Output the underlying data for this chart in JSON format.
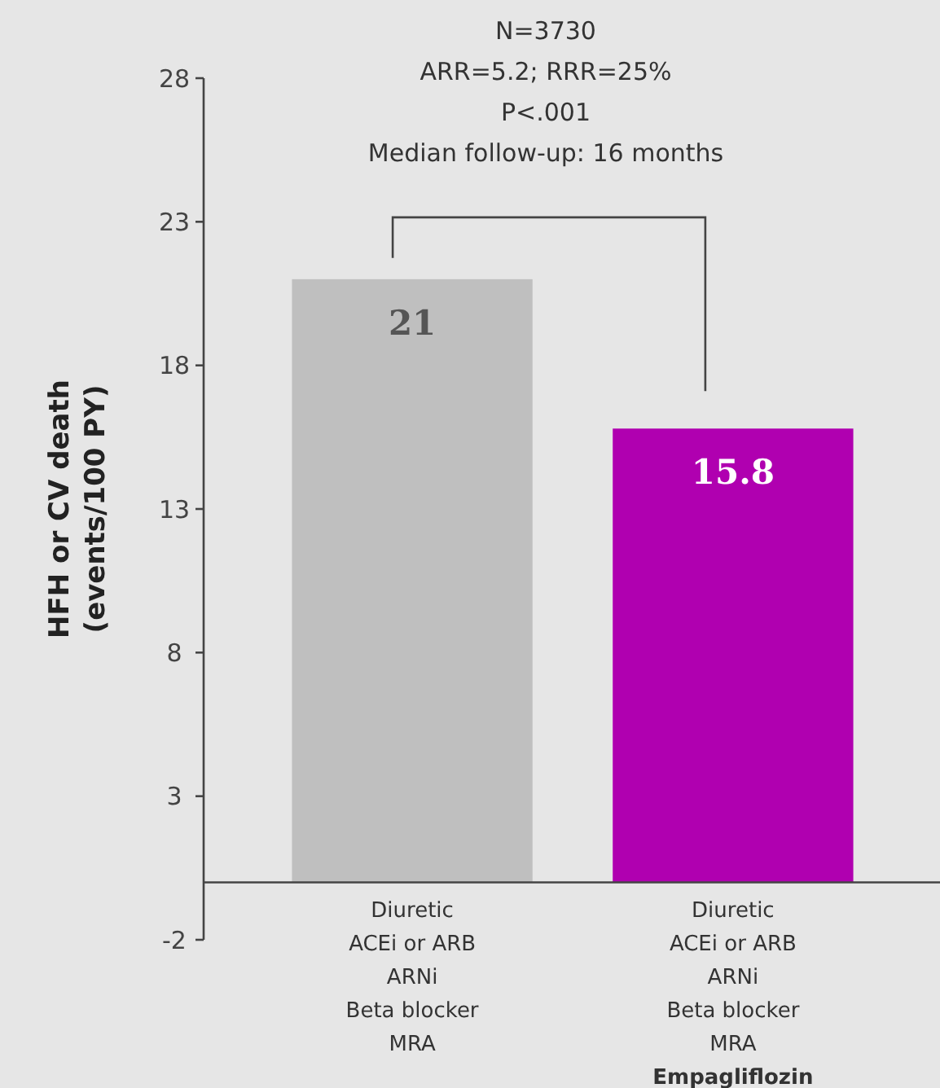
{
  "chart_data": {
    "type": "bar",
    "ylabel": "HFH or CV death\n(events/100 PY)",
    "annotations": [
      "N=3730",
      "ARR=5.2; RRR=25%",
      "P<.001",
      "Median follow-up:  16 months"
    ],
    "categories": [
      "Diuretic\nACEi or ARB\nARNi\nBeta blocker\nMRA",
      "Diuretic\nACEi or ARB\nARNi\nBeta blocker\nMRA\nEmpagliflozin"
    ],
    "values": [
      21,
      15.8
    ],
    "colors": [
      "#bfbfbf",
      "#b000b0"
    ],
    "ylim": [
      -2,
      28
    ],
    "yticks": [
      28,
      23,
      18,
      13,
      8,
      3,
      -2
    ],
    "data_labels": true
  }
}
